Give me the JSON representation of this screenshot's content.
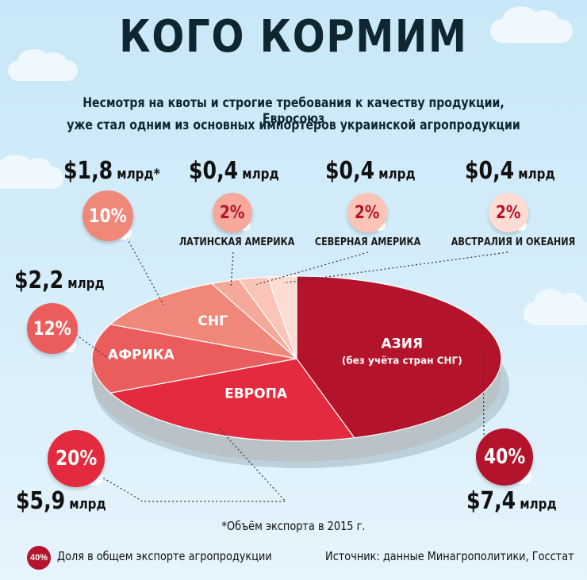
{
  "title": "КОГО КОРМИМ",
  "subtitle_line1": "Несмотря на квоты и строгие требования к качеству продукции, Евросоюз",
  "subtitle_line2": "уже стал одним из основных импортёров украинской агропродукции",
  "footnote": "*Объём экспорта в 2015 г.",
  "legend": {
    "badge_text": "40%",
    "text": "Доля в общем экспорте агропродукции"
  },
  "source": "Источник: данные Минагрополитики, Госстат",
  "colors": {
    "asia": "#b3142c",
    "europe": "#e42a3e",
    "africa": "#eb5c5c",
    "cis": "#f0887a",
    "latin_america": "#f6a99b",
    "north_america": "#fbc4b8",
    "australia": "#fdddd3",
    "rim": "#b9c2c7"
  },
  "chart_data": {
    "type": "pie",
    "unit": "млрд",
    "currency": "$",
    "slices": [
      {
        "name": "АЗИЯ",
        "sublabel": "(без учёта стран СНГ)",
        "percent": 40,
        "percent_label": "40%",
        "value": 7.4,
        "value_label": "$7,4",
        "unit_label": "млрд",
        "color": "#b3142c"
      },
      {
        "name": "ЕВРОПА",
        "percent": 20,
        "percent_label": "20%",
        "value": 5.9,
        "value_label": "$5,9",
        "unit_label": "млрд",
        "color": "#e42a3e"
      },
      {
        "name": "АФРИКА",
        "percent": 12,
        "percent_label": "12%",
        "value": 2.2,
        "value_label": "$2,2",
        "unit_label": "млрд",
        "color": "#eb5c5c"
      },
      {
        "name": "СНГ",
        "percent": 10,
        "percent_label": "10%",
        "value": 1.8,
        "value_label": "$1,8",
        "unit_label": "млрд*",
        "color": "#f0887a"
      },
      {
        "name": "ЛАТИНСКАЯ АМЕРИКА",
        "percent": 2,
        "percent_label": "2%",
        "value": 0.4,
        "value_label": "$0,4",
        "unit_label": "млрд",
        "color": "#f6a99b"
      },
      {
        "name": "СЕВЕРНАЯ АМЕРИКА",
        "percent": 2,
        "percent_label": "2%",
        "value": 0.4,
        "value_label": "$0,4",
        "unit_label": "млрд",
        "color": "#fbc4b8"
      },
      {
        "name": "АВСТРАЛИЯ И ОКЕАНИЯ",
        "percent": 2,
        "percent_label": "2%",
        "value": 0.4,
        "value_label": "$0,4",
        "unit_label": "млрд",
        "color": "#fdddd3"
      }
    ]
  }
}
